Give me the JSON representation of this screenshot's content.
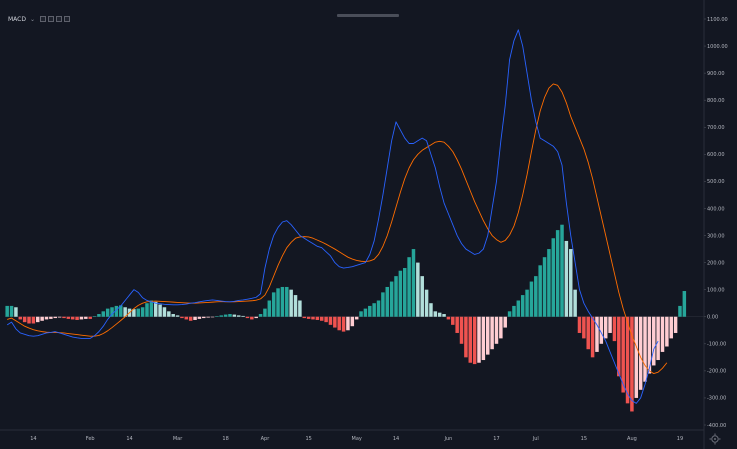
{
  "toolbar": {
    "indicator_label": "MACD"
  },
  "colors": {
    "background": "#131722",
    "macd_line": "#2962ff",
    "signal_line": "#ff6d00",
    "hist_pos_strong": "#26a69a",
    "hist_pos_weak": "#b2dfdb",
    "hist_neg_strong": "#ef5350",
    "hist_neg_weak": "#ffcdd2"
  },
  "chart_data": {
    "type": "line",
    "title": "",
    "xlabel": "",
    "ylabel": "",
    "ylim": [
      -420,
      1100
    ],
    "y_ticks": [
      "1100.00",
      "1000.00",
      "900.00",
      "800.00",
      "700.00",
      "600.00",
      "500.00",
      "400.00",
      "300.00",
      "200.00",
      "100.00",
      "0.00",
      "-100.00",
      "-200.00",
      "-300.00",
      "-400.00"
    ],
    "x_ticks": [
      {
        "label": "14",
        "i": 6
      },
      {
        "label": "Feb",
        "i": 19
      },
      {
        "label": "14",
        "i": 28
      },
      {
        "label": "Mar",
        "i": 39
      },
      {
        "label": "18",
        "i": 50
      },
      {
        "label": "Apr",
        "i": 59
      },
      {
        "label": "15",
        "i": 69
      },
      {
        "label": "May",
        "i": 80
      },
      {
        "label": "14",
        "i": 89
      },
      {
        "label": "Jun",
        "i": 101
      },
      {
        "label": "17",
        "i": 112
      },
      {
        "label": "Jul",
        "i": 121
      },
      {
        "label": "15",
        "i": 132
      },
      {
        "label": "Aug",
        "i": 143
      },
      {
        "label": "19",
        "i": 154
      }
    ],
    "num_slots": 160,
    "series": [
      {
        "key": "macd",
        "values": [
          -30,
          -20,
          -45,
          -60,
          -65,
          -70,
          -72,
          -70,
          -65,
          -60,
          -58,
          -55,
          -60,
          -65,
          -70,
          -75,
          -78,
          -80,
          -80,
          -80,
          -70,
          -55,
          -35,
          -10,
          10,
          25,
          40,
          60,
          80,
          100,
          90,
          70,
          60,
          55,
          50,
          48,
          46,
          45,
          44,
          44,
          45,
          47,
          50,
          52,
          55,
          58,
          60,
          62,
          60,
          58,
          56,
          55,
          57,
          60,
          62,
          65,
          68,
          72,
          85,
          180,
          250,
          300,
          330,
          350,
          355,
          340,
          320,
          300,
          290,
          280,
          270,
          260,
          255,
          240,
          225,
          200,
          185,
          180,
          182,
          185,
          190,
          195,
          200,
          230,
          280,
          360,
          450,
          550,
          650,
          720,
          690,
          660,
          640,
          640,
          650,
          660,
          650,
          600,
          550,
          480,
          420,
          380,
          340,
          300,
          270,
          250,
          240,
          230,
          235,
          250,
          300,
          400,
          500,
          650,
          780,
          950,
          1020,
          1060,
          1000,
          900,
          800,
          720,
          660,
          650,
          640,
          630,
          610,
          560,
          420,
          300,
          200,
          100,
          50,
          20,
          -5,
          -30,
          -60,
          -90,
          -130,
          -170,
          -210,
          -250,
          -285,
          -310,
          -320,
          -300,
          -250,
          -190,
          -120,
          -90,
          null,
          null,
          null,
          null,
          null,
          null,
          null,
          null,
          null,
          null,
          null,
          null,
          null,
          null
        ]
      },
      {
        "key": "signal",
        "values": [
          -10,
          -5,
          -15,
          -25,
          -35,
          -42,
          -48,
          -52,
          -55,
          -57,
          -58,
          -58,
          -59,
          -60,
          -62,
          -64,
          -66,
          -68,
          -70,
          -72,
          -72,
          -69,
          -62,
          -52,
          -40,
          -27,
          -14,
          0,
          15,
          30,
          42,
          50,
          55,
          57,
          58,
          57,
          56,
          55,
          54,
          53,
          52,
          51,
          50,
          50,
          51,
          52,
          53,
          54,
          55,
          56,
          55,
          55,
          55,
          56,
          57,
          58,
          59,
          61,
          66,
          80,
          110,
          150,
          190,
          225,
          255,
          275,
          290,
          295,
          296,
          295,
          290,
          283,
          276,
          268,
          259,
          250,
          240,
          230,
          220,
          213,
          208,
          205,
          204,
          206,
          212,
          230,
          260,
          300,
          350,
          405,
          460,
          510,
          550,
          580,
          600,
          615,
          625,
          635,
          645,
          648,
          645,
          630,
          610,
          580,
          545,
          505,
          465,
          425,
          390,
          355,
          325,
          300,
          285,
          275,
          282,
          302,
          335,
          385,
          450,
          525,
          610,
          690,
          760,
          810,
          845,
          860,
          855,
          830,
          790,
          740,
          700,
          660,
          620,
          570,
          510,
          440,
          370,
          300,
          230,
          160,
          90,
          30,
          -20,
          -70,
          -110,
          -150,
          -180,
          -200,
          -210,
          -205,
          -190,
          -170,
          null,
          null,
          null,
          null,
          null,
          null,
          null,
          null,
          null,
          null,
          null,
          null,
          null,
          null
        ]
      },
      {
        "key": "histogram",
        "values": [
          40,
          40,
          35,
          -10,
          -20,
          -25,
          -25,
          -20,
          -15,
          -10,
          -8,
          -5,
          -3,
          -5,
          -8,
          -10,
          -12,
          -10,
          -8,
          -8,
          2,
          10,
          20,
          30,
          35,
          40,
          42,
          35,
          30,
          28,
          30,
          35,
          50,
          60,
          55,
          45,
          35,
          20,
          10,
          5,
          -5,
          -10,
          -15,
          -12,
          -8,
          -5,
          -3,
          -2,
          2,
          5,
          8,
          10,
          8,
          5,
          3,
          -5,
          -10,
          -5,
          10,
          30,
          60,
          90,
          105,
          110,
          110,
          100,
          80,
          60,
          -5,
          -8,
          -10,
          -12,
          -15,
          -20,
          -30,
          -40,
          -50,
          -55,
          -50,
          -35,
          -10,
          20,
          30,
          40,
          50,
          60,
          90,
          110,
          130,
          150,
          170,
          180,
          220,
          250,
          200,
          150,
          100,
          50,
          20,
          15,
          10,
          -10,
          -30,
          -60,
          -100,
          -150,
          -170,
          -175,
          -170,
          -160,
          -140,
          -120,
          -100,
          -80,
          -40,
          20,
          40,
          60,
          80,
          100,
          130,
          150,
          190,
          220,
          250,
          290,
          320,
          340,
          280,
          250,
          100,
          -60,
          -80,
          -120,
          -150,
          -130,
          -100,
          -80,
          -60,
          -90,
          -220,
          -280,
          -320,
          -350,
          -300,
          -270,
          -240,
          -210,
          -180,
          -160,
          -130,
          -110,
          -80,
          -60,
          40,
          95,
          null,
          null,
          null,
          null,
          null,
          null,
          null,
          null,
          null,
          null,
          null,
          null,
          null
        ]
      }
    ]
  }
}
